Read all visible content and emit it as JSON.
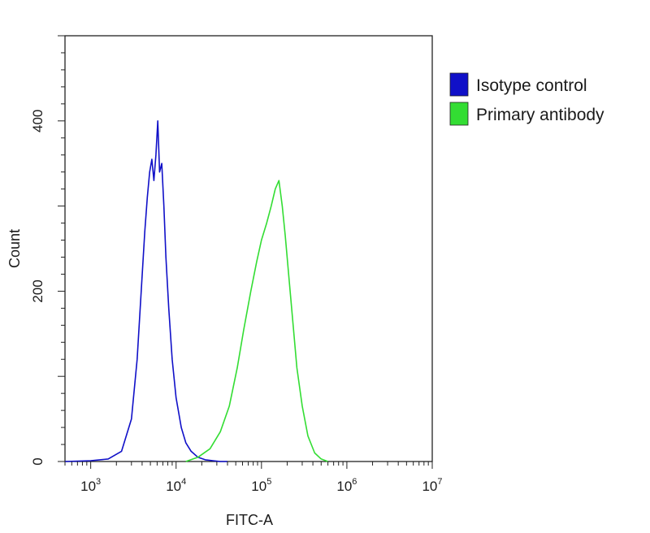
{
  "chart_data": {
    "type": "line",
    "xlabel": "FITC-A",
    "ylabel": "Count",
    "x_scale": "log",
    "xlim": [
      500,
      10000000
    ],
    "ylim": [
      0,
      500
    ],
    "x_ticks": [
      {
        "base": "10",
        "exp": "3",
        "value": 1000
      },
      {
        "base": "10",
        "exp": "4",
        "value": 10000
      },
      {
        "base": "10",
        "exp": "5",
        "value": 100000
      },
      {
        "base": "10",
        "exp": "6",
        "value": 1000000
      },
      {
        "base": "10",
        "exp": "7",
        "value": 10000000
      }
    ],
    "y_ticks": [
      {
        "label": "0",
        "value": 0
      },
      {
        "label": "200",
        "value": 200
      },
      {
        "label": "400",
        "value": 400
      }
    ],
    "grid": false,
    "legend_position": "right",
    "series": [
      {
        "name": "Isotype control",
        "color": "#1010c8",
        "x": [
          500,
          1000,
          1600,
          2300,
          3000,
          3500,
          3900,
          4300,
          4600,
          4900,
          5200,
          5500,
          5800,
          6100,
          6400,
          6800,
          7200,
          7600,
          8200,
          9000,
          10000,
          11500,
          13000,
          15000,
          18000,
          22000,
          27000,
          33000,
          40000
        ],
        "y": [
          0,
          1,
          3,
          12,
          50,
          120,
          200,
          270,
          310,
          340,
          355,
          330,
          360,
          400,
          340,
          350,
          300,
          240,
          180,
          120,
          75,
          40,
          22,
          12,
          5,
          2,
          1,
          0,
          0
        ]
      },
      {
        "name": "Primary antibody",
        "color": "#33dd33",
        "x": [
          13000,
          18000,
          25000,
          33000,
          42000,
          52000,
          62000,
          75000,
          88000,
          100000,
          115000,
          130000,
          145000,
          160000,
          175000,
          190000,
          210000,
          235000,
          260000,
          300000,
          350000,
          420000,
          500000,
          600000
        ],
        "y": [
          0,
          5,
          15,
          35,
          65,
          110,
          155,
          200,
          235,
          260,
          280,
          300,
          320,
          330,
          300,
          265,
          215,
          160,
          110,
          65,
          30,
          10,
          3,
          0
        ]
      }
    ]
  }
}
